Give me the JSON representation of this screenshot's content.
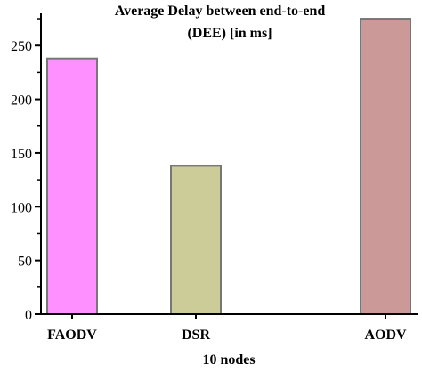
{
  "chart_data": {
    "type": "bar",
    "title": [
      "Average Delay between end-to-end",
      "(DEE) [in ms]"
    ],
    "xlabel": "10 nodes",
    "ylabel": "",
    "categories": [
      "FAODV",
      "DSR",
      "AODV"
    ],
    "values": [
      238,
      138,
      275
    ],
    "ylim": [
      0,
      280
    ],
    "yticks": [
      0,
      50,
      100,
      150,
      200,
      250
    ],
    "grid": false,
    "legend": "none",
    "colors": {
      "bars": [
        "#ff90ff",
        "#cccc99",
        "#cc9999"
      ],
      "bar_edge": "#777777",
      "axis": "#000000"
    }
  }
}
